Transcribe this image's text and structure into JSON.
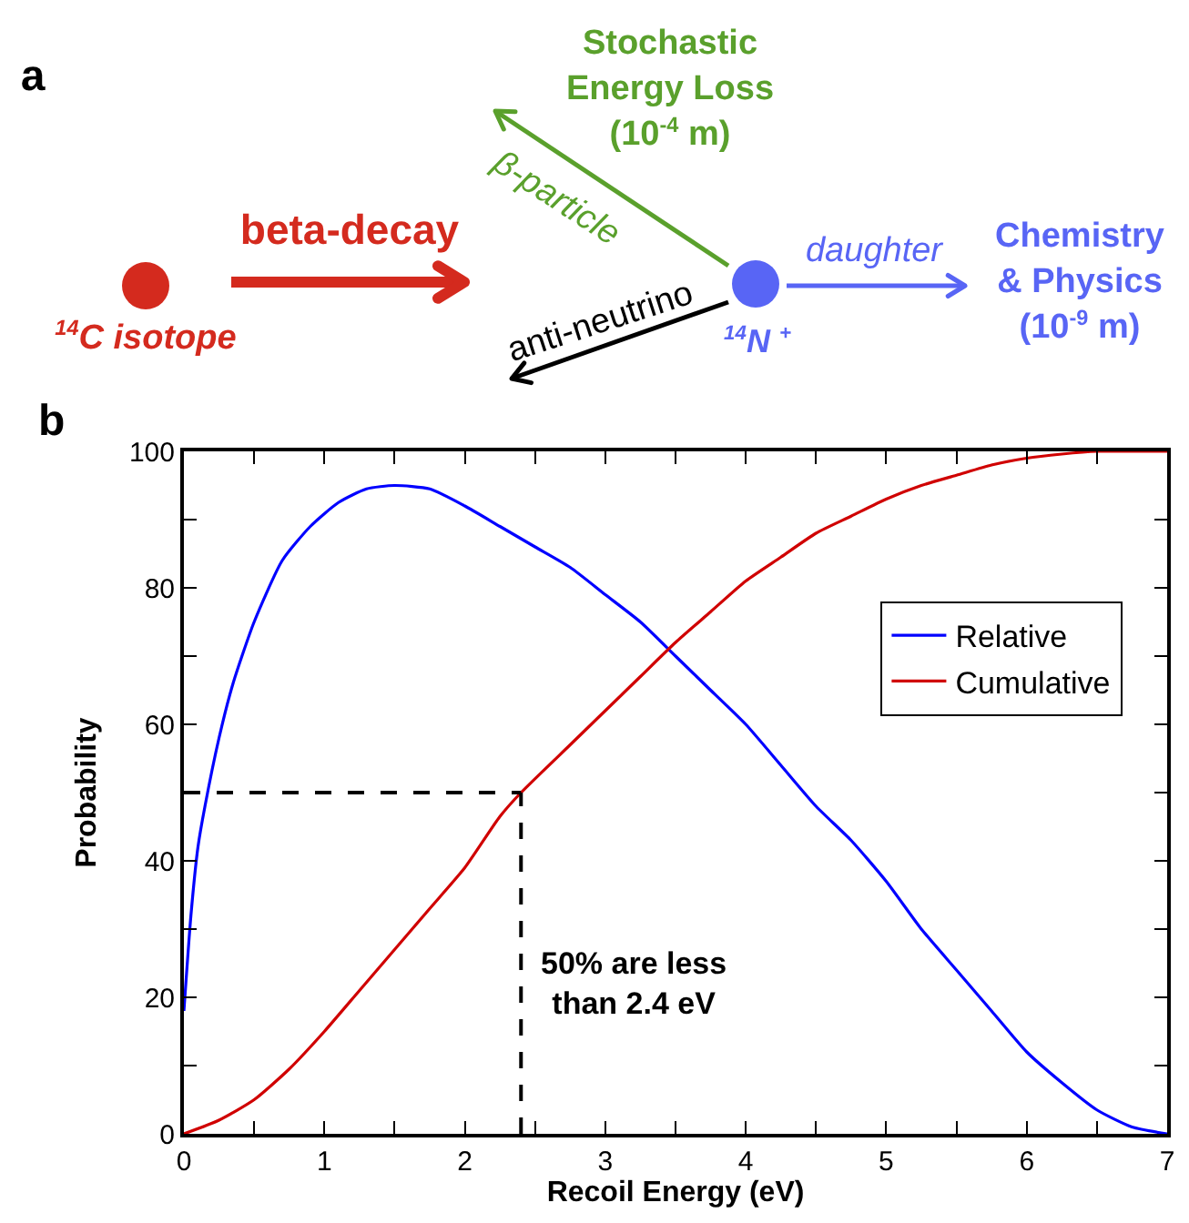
{
  "chart_data": [
    {
      "type": "other",
      "annotations": [
        "a",
        "$^{14}$C isotope",
        "beta-decay",
        "Stochastic\nEnergy Loss\n(10$^{-4}$ m)",
        "β-particle",
        "anti-neutrino",
        "$^{14}$N $^{+}$",
        "daughter",
        "Chemistry\n& Physics\n(10$^{-9}$ m)"
      ]
    },
    {
      "type": "line",
      "xlabel": "Recoil Energy (eV)",
      "ylabel": "Probability",
      "annotations": [
        "b",
        "50% are less\nthan 2.4 eV"
      ],
      "series": [
        {
          "name": "Relative",
          "color": "#0000ff",
          "x": [
            0,
            0.05,
            0.1,
            0.15,
            0.25,
            0.35,
            0.5,
            0.7,
            0.9,
            1.1,
            1.3,
            1.5,
            1.75,
            2,
            2.25,
            2.5,
            2.75,
            3,
            3.25,
            3.5,
            3.75,
            4,
            4.25,
            4.5,
            4.75,
            5,
            5.25,
            5.5,
            5.75,
            6,
            6.25,
            6.5,
            6.75,
            7
          ],
          "values": [
            18,
            32,
            42,
            48,
            58,
            66,
            75,
            84,
            89,
            92.5,
            94.5,
            95,
            94.5,
            92,
            89,
            86,
            83,
            79,
            75,
            70,
            65,
            60,
            54,
            48,
            43,
            37,
            30,
            24,
            18,
            12,
            7.5,
            3.5,
            1,
            0
          ]
        },
        {
          "name": "Cumulative",
          "color": "#d00000",
          "x": [
            0,
            0.25,
            0.5,
            0.75,
            1,
            1.25,
            1.5,
            1.75,
            2,
            2.25,
            2.4,
            2.75,
            3,
            3.25,
            3.5,
            3.75,
            4,
            4.25,
            4.5,
            4.75,
            5,
            5.25,
            5.5,
            5.75,
            6,
            6.25,
            6.5,
            6.75,
            7
          ],
          "values": [
            0,
            2,
            5,
            9.5,
            15,
            21,
            27,
            33,
            39,
            46.5,
            50,
            57,
            62,
            67,
            72,
            76.5,
            81,
            84.5,
            88,
            90.5,
            93,
            95,
            96.5,
            98,
            99,
            99.6,
            100,
            100,
            100
          ]
        }
      ],
      "xlim": [
        0,
        7
      ],
      "ylim": [
        0,
        100
      ],
      "xticks": [
        0,
        {
          "value": 0.5,
          "label": null
        },
        1,
        {
          "value": 1.5,
          "label": null
        },
        2,
        {
          "value": 2.5,
          "label": null
        },
        3,
        {
          "value": 3.5,
          "label": null
        },
        4,
        {
          "value": 4.5,
          "label": null
        },
        5,
        {
          "value": 5.5,
          "label": null
        },
        6,
        {
          "value": 6.5,
          "label": null
        },
        7
      ],
      "yticks": [
        0,
        {
          "value": 10,
          "label": null
        },
        20,
        {
          "value": 30,
          "label": null
        },
        40,
        {
          "value": 50,
          "label": null
        },
        60,
        {
          "value": 70,
          "label": null
        },
        80,
        {
          "value": 90,
          "label": null
        },
        100
      ],
      "ref_lines": [
        {
          "axis": "y",
          "value": 50,
          "color": "#000000",
          "line_style": "dashed"
        },
        {
          "axis": "x",
          "value": 2.4,
          "color": "#000000",
          "line_style": "dashed"
        }
      ],
      "grid": false,
      "legend": "top right",
      "marker": "none",
      "line_style": "solid"
    }
  ]
}
